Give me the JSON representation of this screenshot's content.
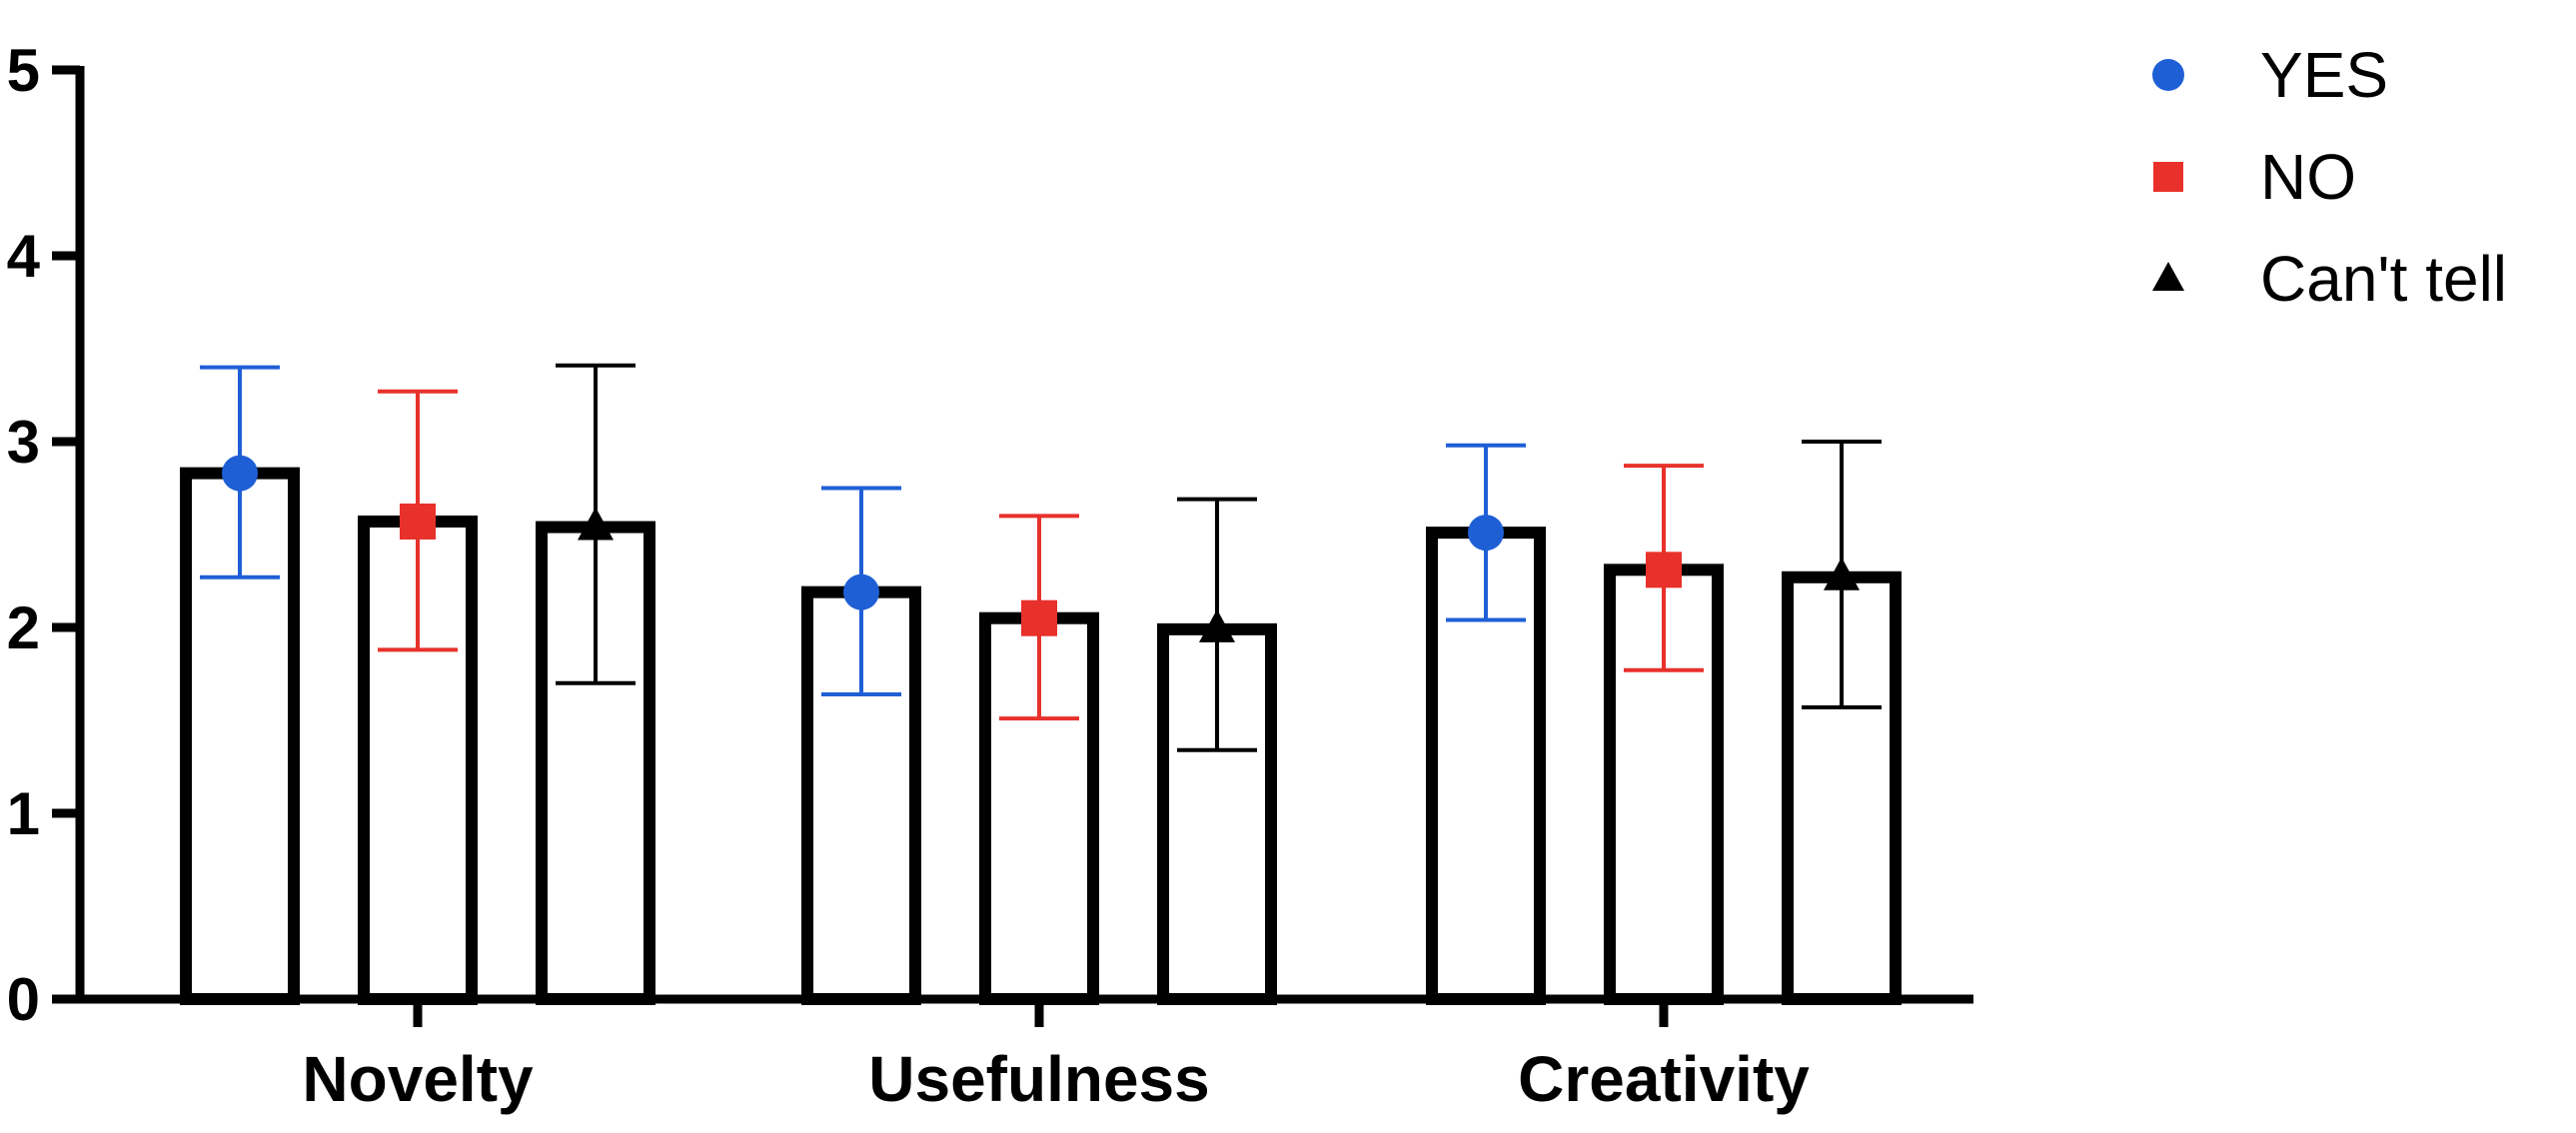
{
  "chart_data": {
    "type": "bar",
    "title": "",
    "xlabel": "",
    "ylabel": "",
    "ylim": [
      0,
      5
    ],
    "yticks": [
      0,
      1,
      2,
      3,
      4,
      5
    ],
    "grid": false,
    "legend_position": "top-right",
    "categories": [
      "Novelty",
      "Usefulness",
      "Creativity"
    ],
    "series": [
      {
        "name": "YES",
        "marker": "circle",
        "color": "#1f5fd6",
        "values": [
          2.83,
          2.19,
          2.51
        ],
        "error_low": [
          2.27,
          1.64,
          2.04
        ],
        "error_high": [
          3.4,
          2.75,
          2.98
        ]
      },
      {
        "name": "NO",
        "marker": "square",
        "color": "#e8312b",
        "values": [
          2.57,
          2.05,
          2.31
        ],
        "error_low": [
          1.88,
          1.51,
          1.77
        ],
        "error_high": [
          3.27,
          2.6,
          2.87
        ]
      },
      {
        "name": "Can't tell",
        "marker": "triangle",
        "color": "#000000",
        "values": [
          2.54,
          1.99,
          2.27
        ],
        "error_low": [
          1.7,
          1.34,
          1.57
        ],
        "error_high": [
          3.41,
          2.69,
          3.0
        ]
      }
    ]
  }
}
